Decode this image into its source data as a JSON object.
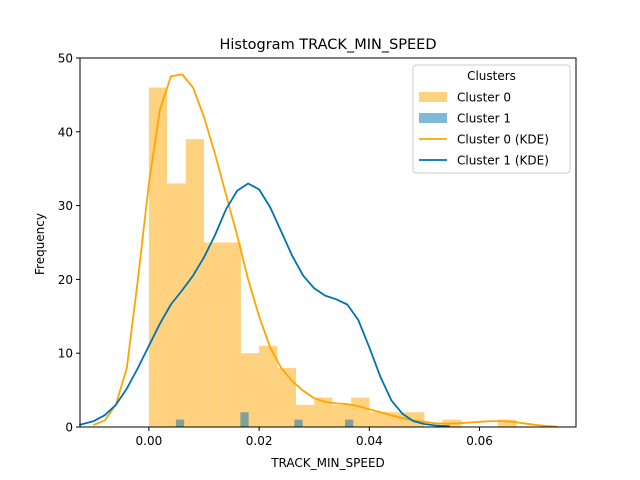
{
  "chart_data": {
    "type": "bar",
    "title": "Histogram TRACK_MIN_SPEED",
    "xlabel": "TRACK_MIN_SPEED",
    "ylabel": "Frequency",
    "xlim": [
      -0.0125,
      0.0775
    ],
    "ylim": [
      0,
      50
    ],
    "xticks": [
      0.0,
      0.02,
      0.04,
      0.06
    ],
    "xtick_labels": [
      "0.00",
      "0.02",
      "0.04",
      "0.06"
    ],
    "yticks": [
      0,
      10,
      20,
      30,
      40,
      50
    ],
    "ytick_labels": [
      "0",
      "10",
      "20",
      "30",
      "40",
      "50"
    ],
    "grid": false,
    "legend": {
      "title": "Clusters",
      "placement": "top-right"
    },
    "histograms": [
      {
        "name": "Cluster 0",
        "color": "#FFA500",
        "opacity": 0.5,
        "bins": [
          [
            0.0,
            0.0033,
            46
          ],
          [
            0.0033,
            0.0067,
            33
          ],
          [
            0.0067,
            0.01,
            39
          ],
          [
            0.01,
            0.0133,
            25
          ],
          [
            0.0133,
            0.0167,
            25
          ],
          [
            0.0167,
            0.02,
            10
          ],
          [
            0.02,
            0.0233,
            11
          ],
          [
            0.0233,
            0.0267,
            8
          ],
          [
            0.0267,
            0.03,
            3
          ],
          [
            0.03,
            0.0333,
            4
          ],
          [
            0.0333,
            0.0367,
            3
          ],
          [
            0.0367,
            0.04,
            4
          ],
          [
            0.04,
            0.0433,
            2
          ],
          [
            0.0433,
            0.0467,
            2
          ],
          [
            0.0467,
            0.05,
            2
          ],
          [
            0.0533,
            0.0567,
            1
          ],
          [
            0.0633,
            0.0667,
            1
          ]
        ]
      },
      {
        "name": "Cluster 1",
        "color": "#0072B2",
        "opacity": 0.5,
        "bins": [
          [
            0.0049,
            0.0064,
            1
          ],
          [
            0.0166,
            0.0181,
            2
          ],
          [
            0.0264,
            0.0279,
            1
          ],
          [
            0.0356,
            0.0371,
            1
          ]
        ]
      }
    ],
    "kde": [
      {
        "name": "Cluster 0 (KDE)",
        "color": "#FFA500",
        "x": [
          -0.01,
          -0.008,
          -0.006,
          -0.004,
          -0.002,
          0.0,
          0.002,
          0.004,
          0.006,
          0.008,
          0.01,
          0.012,
          0.014,
          0.016,
          0.018,
          0.02,
          0.022,
          0.024,
          0.026,
          0.028,
          0.03,
          0.032,
          0.034,
          0.036,
          0.038,
          0.04,
          0.042,
          0.044,
          0.046,
          0.048,
          0.05,
          0.052,
          0.054,
          0.056,
          0.058,
          0.06,
          0.062,
          0.064,
          0.066,
          0.068,
          0.07,
          0.072,
          0.074
        ],
        "y": [
          0.3,
          0.9,
          3.0,
          8.0,
          20.0,
          33.0,
          43.0,
          47.5,
          47.8,
          46.0,
          42.0,
          37.0,
          31.5,
          26.0,
          20.0,
          15.0,
          10.8,
          8.0,
          6.2,
          4.9,
          3.9,
          3.4,
          3.2,
          3.1,
          2.8,
          2.4,
          2.0,
          1.6,
          1.2,
          0.9,
          0.7,
          0.5,
          0.45,
          0.5,
          0.6,
          0.7,
          0.8,
          0.8,
          0.7,
          0.5,
          0.3,
          0.15,
          0.05
        ]
      },
      {
        "name": "Cluster 1 (KDE)",
        "color": "#0072B2",
        "x": [
          -0.0125,
          -0.01,
          -0.008,
          -0.006,
          -0.004,
          -0.002,
          0.0,
          0.002,
          0.004,
          0.006,
          0.008,
          0.01,
          0.012,
          0.014,
          0.016,
          0.018,
          0.02,
          0.022,
          0.024,
          0.026,
          0.028,
          0.03,
          0.032,
          0.034,
          0.036,
          0.038,
          0.04,
          0.042,
          0.044,
          0.046,
          0.048,
          0.05,
          0.052,
          0.0545
        ],
        "y": [
          0.3,
          0.8,
          1.6,
          3.0,
          5.2,
          8.0,
          11.0,
          14.0,
          16.6,
          18.5,
          20.5,
          23.0,
          26.0,
          29.5,
          32.0,
          33.0,
          32.2,
          29.8,
          26.5,
          23.2,
          20.5,
          18.8,
          17.8,
          17.3,
          16.6,
          14.5,
          10.8,
          6.8,
          3.6,
          1.8,
          0.8,
          0.4,
          0.2,
          0.1
        ]
      }
    ],
    "legend_items": [
      {
        "label": "Cluster 0",
        "kind": "patch",
        "color": "#FFA500"
      },
      {
        "label": "Cluster 1",
        "kind": "patch",
        "color": "#0072B2"
      },
      {
        "label": "Cluster 0 (KDE)",
        "kind": "line",
        "color": "#FFA500"
      },
      {
        "label": "Cluster 1 (KDE)",
        "kind": "line",
        "color": "#0072B2"
      }
    ]
  }
}
